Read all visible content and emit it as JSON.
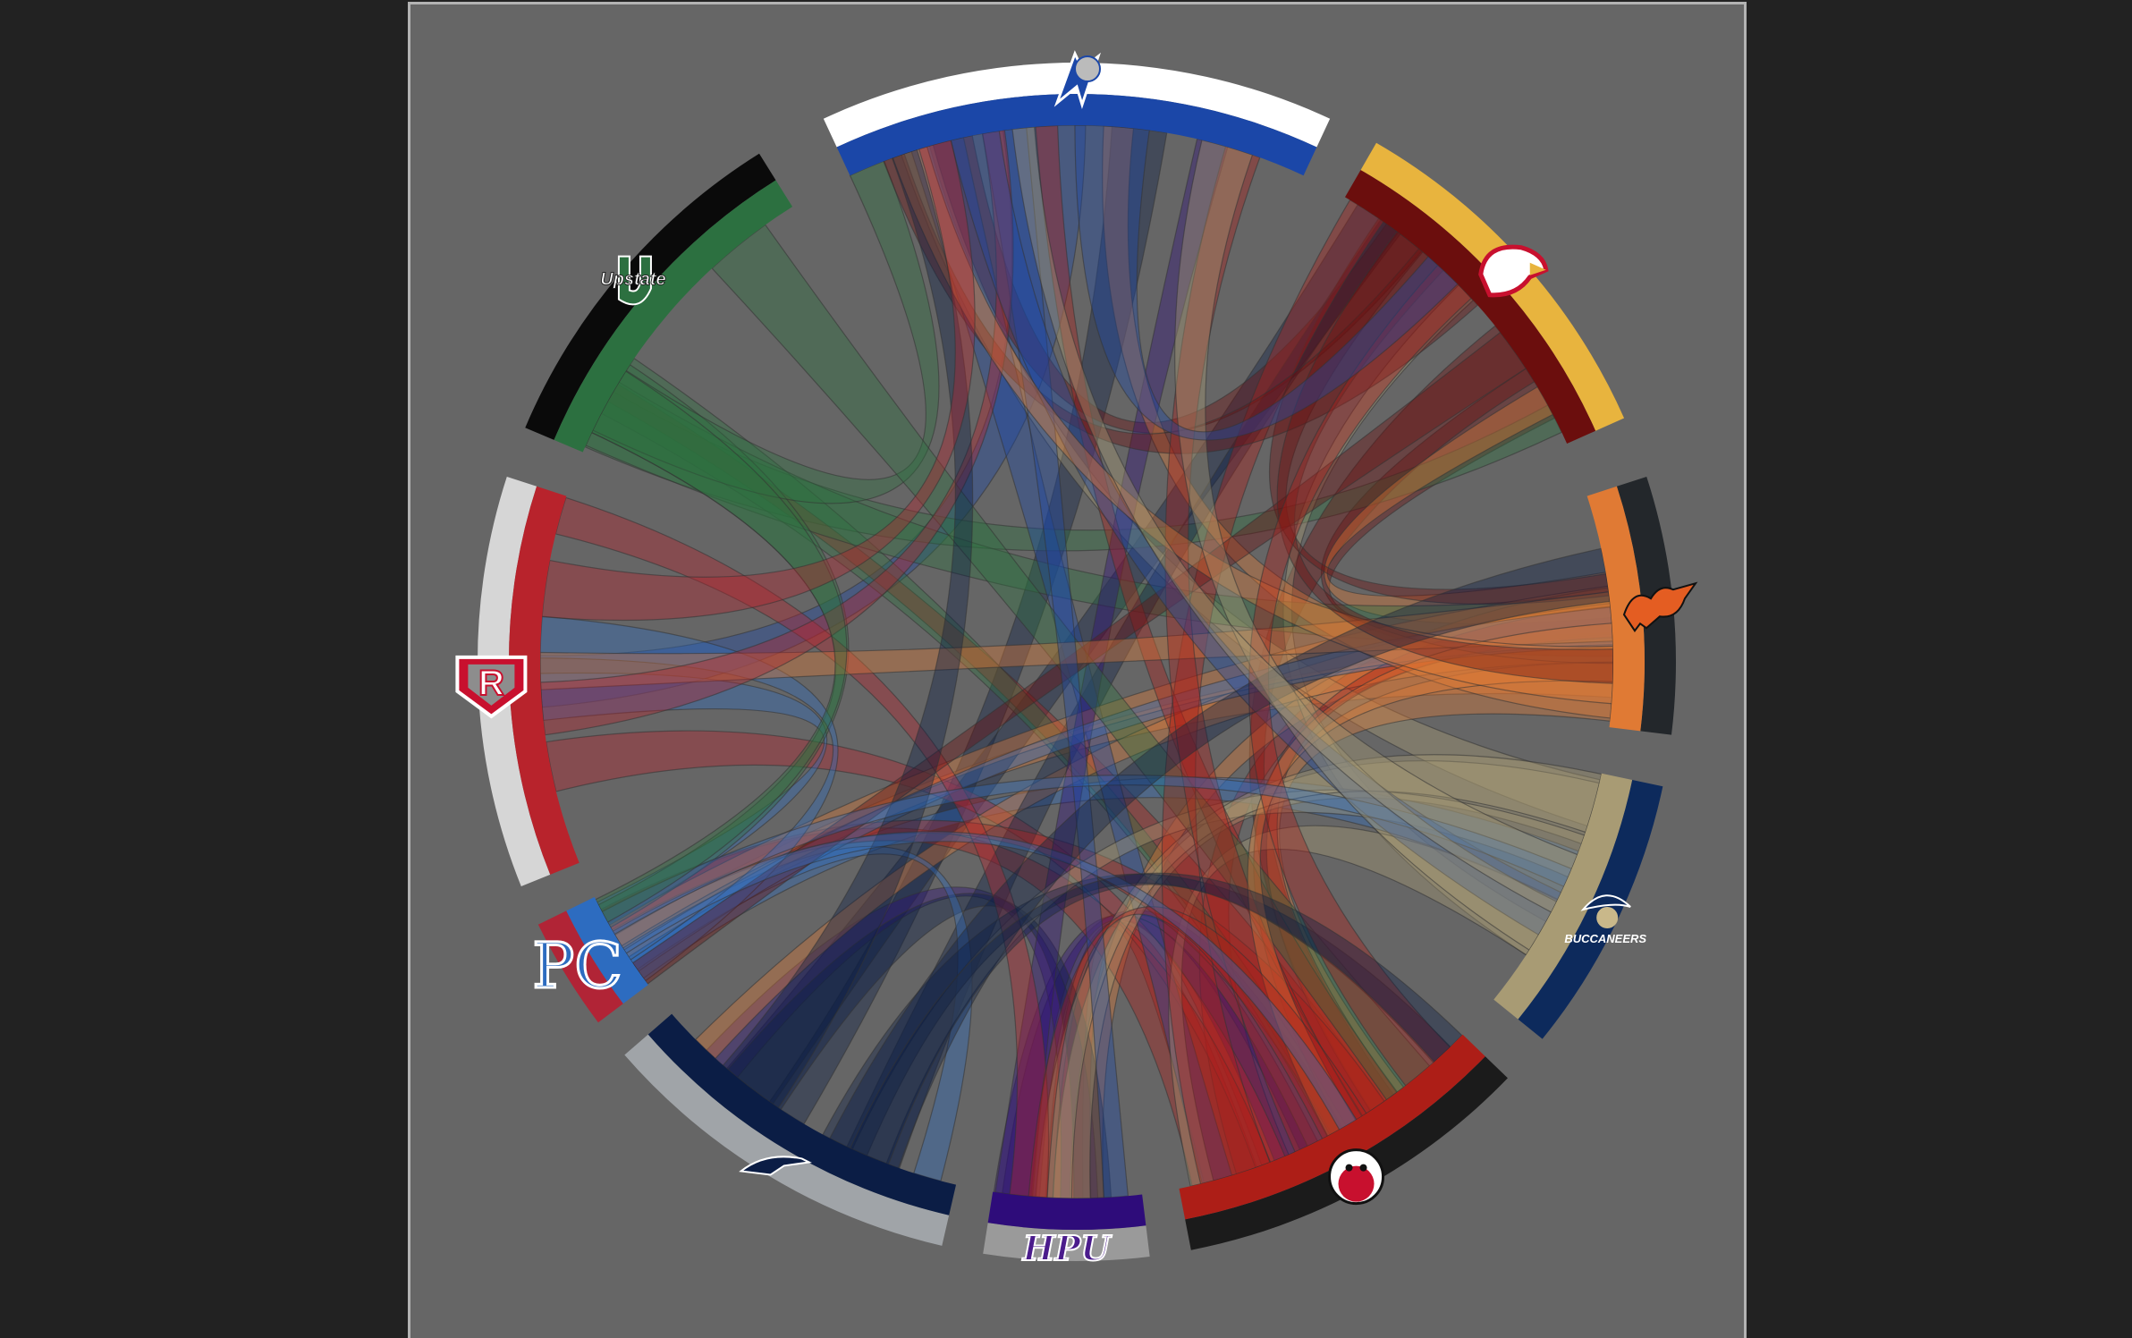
{
  "chart_data": {
    "type": "chord",
    "background": "#666666",
    "page_background": "#222222",
    "teams": [
      {
        "key": "unca",
        "logo_text": "",
        "outer": "#ffffff",
        "inner": "#1b47a8",
        "start": -25,
        "end": 25,
        "icon": "bulldog-bolt-icon"
      },
      {
        "key": "winthrop",
        "logo_text": "",
        "outer": "#e8b43e",
        "inner": "#6b0e0d",
        "start": 30,
        "end": 66,
        "icon": "eagle-icon"
      },
      {
        "key": "campbell",
        "logo_text": "",
        "outer": "#23272b",
        "inner": "#e07a34",
        "start": 72,
        "end": 97,
        "icon": "camel-icon"
      },
      {
        "key": "csu",
        "logo_text": "BUCCANEERS",
        "outer": "#0d2a5c",
        "inner": "#a89b74",
        "start": 102,
        "end": 129,
        "icon": "pirate-icon"
      },
      {
        "key": "gardner-webb",
        "logo_text": "",
        "outer": "#1b1b1b",
        "inner": "#ad1e17",
        "start": 134,
        "end": 169,
        "icon": "bulldog-icon"
      },
      {
        "key": "hpu",
        "logo_text": "HPU",
        "outer": "#9a9a9a",
        "inner": "#2e0c7a",
        "start": 173,
        "end": 189,
        "icon": "hpu-icon"
      },
      {
        "key": "longwood",
        "logo_text": "",
        "outer": "#a0a4a8",
        "inner": "#0b1d45",
        "start": 193,
        "end": 229,
        "icon": "lancer-icon"
      },
      {
        "key": "presbyterian",
        "logo_text": "PC",
        "outer": "#b12436",
        "inner": "#2d6cc0",
        "start": 233,
        "end": 244,
        "icon": "pc-icon"
      },
      {
        "key": "radford",
        "logo_text": "R",
        "outer": "#d6d6d6",
        "inner": "#b8232c",
        "start": 248,
        "end": 288,
        "icon": "radford-shield-icon"
      },
      {
        "key": "upstate",
        "logo_text": "Upstate",
        "outer": "#0a0a0a",
        "inner": "#2c7040",
        "start": 293,
        "end": 328,
        "icon": "upstate-u-icon"
      }
    ],
    "ribbon_count": 72
  }
}
